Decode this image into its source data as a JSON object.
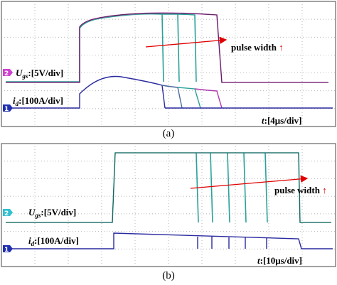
{
  "panels": [
    {
      "ugs_label": {
        "symbol": "U",
        "sub": "gs",
        "scale": ":[5V/div]"
      },
      "id_label": {
        "symbol": "i",
        "sub": "d",
        "scale": ":[100A/div]"
      },
      "time_label": {
        "symbol": "t",
        "scale": ":[4μs/div]"
      },
      "annotation": {
        "text": "pulse width",
        "arrow": "↑"
      },
      "channel_markers": [
        "2",
        "1"
      ],
      "caption": "(a)"
    },
    {
      "ugs_label": {
        "symbol": "U",
        "sub": "gs",
        "scale": ":[5V/div]"
      },
      "id_label": {
        "symbol": "i",
        "sub": "d",
        "scale": ":[100A/div]"
      },
      "time_label": {
        "symbol": "t",
        "scale": ":[10μs/div]"
      },
      "annotation": {
        "text": "pulse width",
        "arrow": "↑"
      },
      "channel_markers": [
        "2",
        "1"
      ],
      "caption": "(b)"
    }
  ]
}
